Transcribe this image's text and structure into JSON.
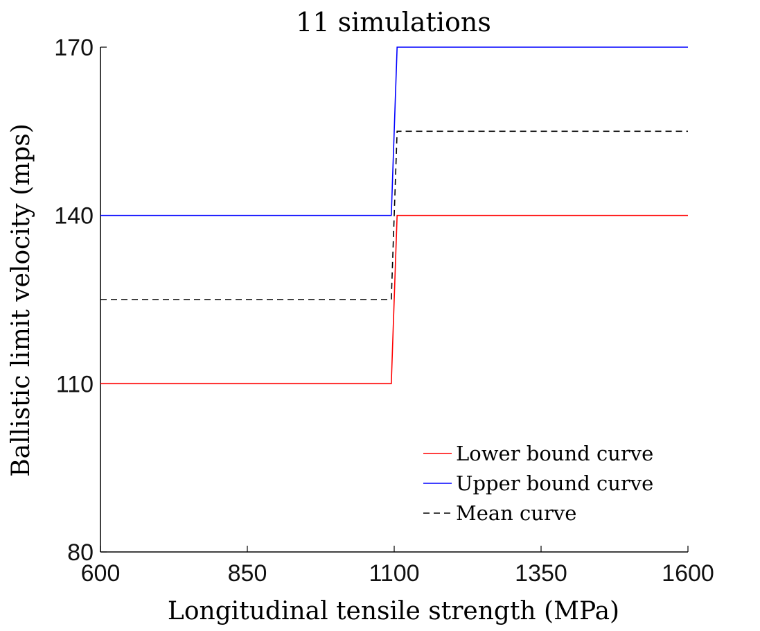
{
  "chart_data": {
    "type": "line",
    "title": "11 simulations",
    "xlabel": "Longitudinal tensile strength (MPa)",
    "ylabel": "Ballistic limit velocity (mps)",
    "xlim": [
      600,
      1600
    ],
    "ylim": [
      80,
      170
    ],
    "xticks": [
      "600",
      "850",
      "1100",
      "1350",
      "1600"
    ],
    "yticks": [
      "80",
      "110",
      "140",
      "170"
    ],
    "grid": false,
    "legend_position": "bottom-right",
    "series": [
      {
        "name": "Lower bound curve",
        "color": "#ff0000",
        "style": "solid",
        "x": [
          600,
          1095,
          1105,
          1600
        ],
        "y": [
          110,
          110,
          140,
          140
        ]
      },
      {
        "name": "Upper bound curve",
        "color": "#0000ff",
        "style": "solid",
        "x": [
          600,
          1095,
          1105,
          1600
        ],
        "y": [
          140,
          140,
          170,
          170
        ]
      },
      {
        "name": "Mean curve",
        "color": "#000000",
        "style": "dashed",
        "x": [
          600,
          1095,
          1105,
          1600
        ],
        "y": [
          125,
          125,
          155,
          155
        ]
      }
    ]
  }
}
